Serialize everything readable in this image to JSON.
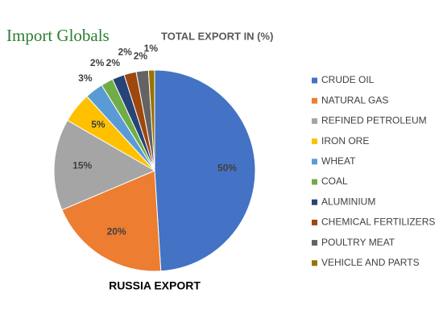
{
  "logo": "Import Globals",
  "chart_data": {
    "type": "pie",
    "title": "TOTAL EXPORT IN (%)",
    "subtitle": "RUSSIA EXPORT",
    "categories": [
      "CRUDE OIL",
      "NATURAL GAS",
      "REFINED PETROLEUM",
      "IRON ORE",
      "WHEAT",
      "COAL",
      "ALUMINIUM",
      "CHEMICAL FERTILIZERS",
      "POULTRY MEAT",
      "VEHICLE AND PARTS"
    ],
    "values": [
      50,
      20,
      15,
      5,
      3,
      2,
      2,
      2,
      2,
      1
    ],
    "value_labels": [
      "50%",
      "20%",
      "15%",
      "5%",
      "3%",
      "2%",
      "2%",
      "2%",
      "2%",
      "1%"
    ],
    "colors": [
      "#4472c4",
      "#ed7d31",
      "#a5a5a5",
      "#ffc000",
      "#5b9bd5",
      "#70ad47",
      "#264478",
      "#9e480e",
      "#636363",
      "#997300"
    ],
    "legend": "right"
  }
}
